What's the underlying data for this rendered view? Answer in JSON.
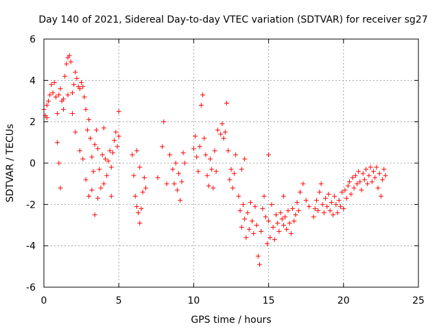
{
  "chart_data": {
    "type": "scatter",
    "title": "Day 140 of 2021, Sidereal Day-to-day VTEC variation (SDTVAR) for receiver sg27",
    "xlabel": "GPS time / hours",
    "ylabel": "SDTVAR / TECUs",
    "xlim": [
      0,
      25
    ],
    "ylim": [
      -6,
      6
    ],
    "xticks": [
      "0",
      "5",
      "10",
      "15",
      "20",
      "25"
    ],
    "yticks": [
      "-6",
      "-4",
      "-2",
      "0",
      "2",
      "4",
      "6"
    ],
    "grid": true,
    "marker": "plus",
    "color": "#ff0000",
    "series": [
      {
        "name": "SDTVAR",
        "points": [
          [
            0.0,
            2.6
          ],
          [
            0.1,
            2.3
          ],
          [
            0.2,
            2.8
          ],
          [
            0.3,
            3.0
          ],
          [
            0.4,
            3.3
          ],
          [
            0.5,
            3.8
          ],
          [
            0.6,
            3.4
          ],
          [
            0.7,
            3.9
          ],
          [
            0.8,
            3.2
          ],
          [
            0.9,
            2.4
          ],
          [
            1.0,
            3.3
          ],
          [
            1.1,
            3.6
          ],
          [
            1.2,
            3.0
          ],
          [
            1.3,
            3.1
          ],
          [
            1.4,
            4.2
          ],
          [
            1.5,
            4.8
          ],
          [
            1.6,
            5.1
          ],
          [
            1.7,
            5.2
          ],
          [
            1.8,
            4.9
          ],
          [
            1.9,
            3.4
          ],
          [
            2.0,
            3.8
          ],
          [
            2.1,
            4.4
          ],
          [
            2.2,
            4.1
          ],
          [
            2.3,
            3.7
          ],
          [
            2.4,
            3.6
          ],
          [
            2.5,
            3.9
          ],
          [
            2.6,
            3.7
          ],
          [
            2.7,
            3.2
          ],
          [
            2.8,
            2.6
          ],
          [
            2.9,
            1.6
          ],
          [
            3.0,
            2.1
          ],
          [
            3.1,
            1.2
          ],
          [
            3.2,
            0.3
          ],
          [
            3.3,
            -0.4
          ],
          [
            3.4,
            0.9
          ],
          [
            3.5,
            1.6
          ],
          [
            3.6,
            0.7
          ],
          [
            3.7,
            -0.3
          ],
          [
            3.8,
            -1.2
          ],
          [
            3.9,
            0.4
          ],
          [
            4.0,
            1.7
          ],
          [
            4.1,
            0.2
          ],
          [
            4.2,
            -0.6
          ],
          [
            4.3,
            0.1
          ],
          [
            4.4,
            0.6
          ],
          [
            4.5,
            -0.2
          ],
          [
            4.6,
            0.5
          ],
          [
            4.7,
            1.1
          ],
          [
            4.8,
            1.5
          ],
          [
            4.9,
            0.8
          ],
          [
            5.0,
            1.3
          ],
          [
            0.2,
            2.2
          ],
          [
            0.9,
            1.0
          ],
          [
            1.0,
            0.0
          ],
          [
            1.1,
            -1.2
          ],
          [
            1.3,
            2.6
          ],
          [
            1.6,
            3.3
          ],
          [
            1.9,
            2.4
          ],
          [
            2.1,
            1.5
          ],
          [
            2.4,
            0.6
          ],
          [
            2.6,
            0.2
          ],
          [
            2.8,
            -0.8
          ],
          [
            3.0,
            -1.6
          ],
          [
            3.2,
            -1.3
          ],
          [
            3.4,
            -2.5
          ],
          [
            3.6,
            -1.7
          ],
          [
            4.0,
            -1.0
          ],
          [
            4.5,
            -1.6
          ],
          [
            5.0,
            2.5
          ],
          [
            5.9,
            0.4
          ],
          [
            6.0,
            -0.6
          ],
          [
            6.1,
            -1.6
          ],
          [
            6.2,
            -2.1
          ],
          [
            6.3,
            -2.4
          ],
          [
            6.4,
            -2.9
          ],
          [
            6.5,
            -2.2
          ],
          [
            6.6,
            -1.4
          ],
          [
            6.7,
            -0.7
          ],
          [
            6.8,
            -1.2
          ],
          [
            6.2,
            0.6
          ],
          [
            6.4,
            -0.2
          ],
          [
            7.6,
            -0.7
          ],
          [
            7.9,
            0.8
          ],
          [
            8.0,
            2.0
          ],
          [
            8.2,
            -1.0
          ],
          [
            8.4,
            0.4
          ],
          [
            8.6,
            -0.3
          ],
          [
            8.7,
            -1.0
          ],
          [
            8.8,
            0.0
          ],
          [
            8.9,
            -1.3
          ],
          [
            9.0,
            -0.5
          ],
          [
            9.1,
            -1.8
          ],
          [
            9.2,
            -0.9
          ],
          [
            9.3,
            0.5
          ],
          [
            9.4,
            0.0
          ],
          [
            10.0,
            0.7
          ],
          [
            10.1,
            1.3
          ],
          [
            10.2,
            0.3
          ],
          [
            10.3,
            -0.4
          ],
          [
            10.4,
            0.8
          ],
          [
            10.5,
            2.8
          ],
          [
            10.6,
            3.3
          ],
          [
            10.7,
            1.2
          ],
          [
            10.8,
            0.4
          ],
          [
            10.9,
            -0.6
          ],
          [
            11.0,
            -1.1
          ],
          [
            11.1,
            0.2
          ],
          [
            11.2,
            -0.3
          ],
          [
            11.3,
            -1.2
          ],
          [
            11.4,
            0.6
          ],
          [
            11.5,
            -0.4
          ],
          [
            11.6,
            1.6
          ],
          [
            11.8,
            1.4
          ],
          [
            11.9,
            1.9
          ],
          [
            12.0,
            1.2
          ],
          [
            12.1,
            1.5
          ],
          [
            12.2,
            2.9
          ],
          [
            12.3,
            0.6
          ],
          [
            12.4,
            -0.8
          ],
          [
            12.5,
            -0.3
          ],
          [
            12.6,
            -1.2
          ],
          [
            12.7,
            -0.5
          ],
          [
            12.8,
            0.4
          ],
          [
            13.0,
            -1.6
          ],
          [
            13.1,
            -2.3
          ],
          [
            13.2,
            -3.1
          ],
          [
            13.3,
            -2.0
          ],
          [
            13.4,
            -2.7
          ],
          [
            13.5,
            -3.6
          ],
          [
            13.6,
            -2.4
          ],
          [
            13.7,
            -3.2
          ],
          [
            13.8,
            -1.9
          ],
          [
            13.9,
            -2.8
          ],
          [
            14.0,
            -3.4
          ],
          [
            14.1,
            -2.1
          ],
          [
            14.2,
            -3.0
          ],
          [
            14.3,
            -4.5
          ],
          [
            14.4,
            -4.9
          ],
          [
            14.5,
            -3.3
          ],
          [
            14.6,
            -2.2
          ],
          [
            14.7,
            -1.6
          ],
          [
            14.8,
            -2.6
          ],
          [
            14.9,
            -3.9
          ],
          [
            15.0,
            -2.8
          ],
          [
            15.1,
            -3.6
          ],
          [
            15.2,
            -2.0
          ],
          [
            15.3,
            -3.1
          ],
          [
            15.4,
            -3.7
          ],
          [
            15.5,
            -2.5
          ],
          [
            15.6,
            -2.9
          ],
          [
            15.7,
            -3.3
          ],
          [
            15.8,
            -2.4
          ],
          [
            15.9,
            -2.7
          ],
          [
            16.0,
            -3.0
          ],
          [
            16.1,
            -2.6
          ],
          [
            16.2,
            -3.2
          ],
          [
            16.3,
            -2.3
          ],
          [
            16.4,
            -2.9
          ],
          [
            16.5,
            -3.4
          ],
          [
            16.6,
            -2.2
          ],
          [
            16.7,
            -2.8
          ],
          [
            16.8,
            -2.5
          ],
          [
            16.9,
            -1.9
          ],
          [
            17.0,
            -2.3
          ],
          [
            17.1,
            -1.4
          ],
          [
            17.3,
            -1.0
          ],
          [
            17.5,
            -1.8
          ],
          [
            17.7,
            -2.1
          ],
          [
            18.0,
            -2.6
          ],
          [
            18.1,
            -2.2
          ],
          [
            18.2,
            -1.8
          ],
          [
            18.3,
            -2.3
          ],
          [
            18.4,
            -1.4
          ],
          [
            18.5,
            -1.0
          ],
          [
            18.6,
            -2.0
          ],
          [
            18.7,
            -2.4
          ],
          [
            18.8,
            -1.7
          ],
          [
            18.9,
            -2.1
          ],
          [
            19.0,
            -1.5
          ],
          [
            19.1,
            -2.3
          ],
          [
            19.2,
            -1.9
          ],
          [
            19.3,
            -2.5
          ],
          [
            19.4,
            -1.6
          ],
          [
            19.5,
            -2.0
          ],
          [
            19.6,
            -2.4
          ],
          [
            19.7,
            -1.8
          ],
          [
            19.8,
            -2.1
          ],
          [
            19.9,
            -1.4
          ],
          [
            20.0,
            -2.2
          ],
          [
            20.1,
            -1.3
          ],
          [
            20.2,
            -1.7
          ],
          [
            20.3,
            -1.1
          ],
          [
            20.4,
            -0.9
          ],
          [
            20.5,
            -1.5
          ],
          [
            20.6,
            -0.7
          ],
          [
            20.7,
            -1.2
          ],
          [
            20.8,
            -0.6
          ],
          [
            20.9,
            -1.0
          ],
          [
            21.0,
            -0.4
          ],
          [
            21.1,
            -0.9
          ],
          [
            21.2,
            -1.3
          ],
          [
            21.3,
            -0.5
          ],
          [
            21.4,
            -0.8
          ],
          [
            21.5,
            -0.3
          ],
          [
            21.6,
            -1.0
          ],
          [
            21.7,
            -0.6
          ],
          [
            21.8,
            -0.2
          ],
          [
            21.9,
            -0.9
          ],
          [
            22.0,
            -0.4
          ],
          [
            22.1,
            -0.7
          ],
          [
            22.2,
            -0.2
          ],
          [
            22.3,
            -1.2
          ],
          [
            22.4,
            -0.5
          ],
          [
            22.5,
            -1.6
          ],
          [
            22.6,
            -0.8
          ],
          [
            22.7,
            -0.3
          ],
          [
            22.8,
            -0.6
          ],
          [
            13.4,
            0.2
          ],
          [
            15.0,
            0.4
          ],
          [
            13.2,
            -0.3
          ],
          [
            16.0,
            -1.6
          ]
        ]
      }
    ]
  }
}
